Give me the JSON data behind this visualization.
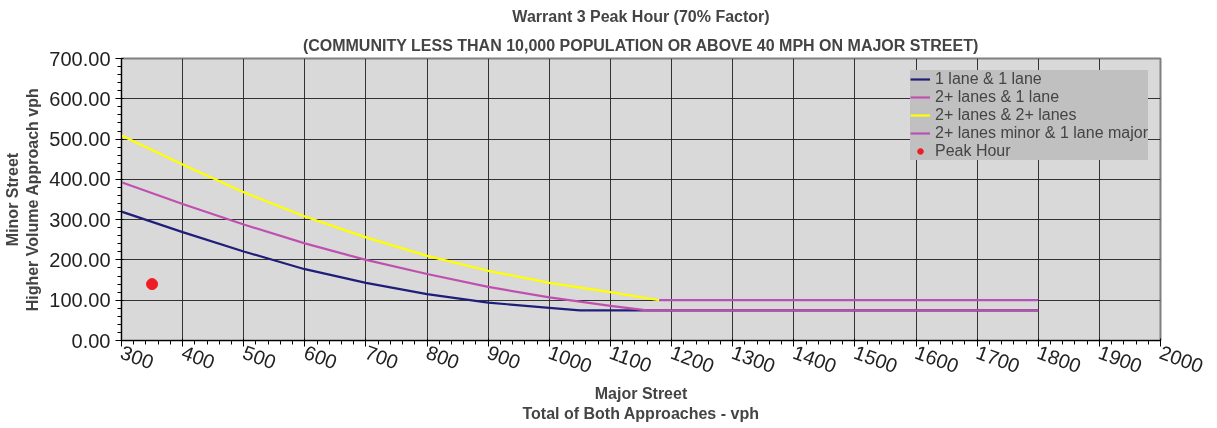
{
  "chart_data": {
    "type": "line",
    "title": "Warrant 3 Peak Hour (70% Factor)",
    "subtitle": "(COMMUNITY LESS THAN 10,000 POPULATION OR ABOVE 40 MPH ON MAJOR STREET)",
    "xlabel": "Major Street\nTotal of Both Approaches - vph",
    "ylabel": "Minor Street\nHigher Volume Approach vph",
    "series": [
      {
        "name": "1 lane & 1 lane",
        "color": "#1f1f7a",
        "x": [
          300,
          400,
          500,
          600,
          700,
          800,
          900,
          1000,
          1050,
          1800
        ],
        "values": [
          320,
          269,
          221,
          177,
          143,
          115,
          94,
          81,
          75,
          75
        ]
      },
      {
        "name": "2+ lanes & 1 lane",
        "color": "#c050b0",
        "x": [
          300,
          400,
          500,
          600,
          700,
          800,
          900,
          1000,
          1100,
          1160,
          1800
        ],
        "values": [
          393,
          339,
          288,
          241,
          200,
          165,
          133,
          107,
          86,
          75,
          75
        ]
      },
      {
        "name": "2+ lanes & 2+ lanes",
        "color": "#ffff00",
        "x": [
          300,
          400,
          500,
          600,
          700,
          800,
          900,
          1000,
          1100,
          1180
        ],
        "values": [
          509,
          437,
          368,
          308,
          256,
          210,
          173,
          143,
          120,
          100
        ]
      },
      {
        "name": "2+ lanes minor & 1 lane major",
        "color": "#b850b8",
        "x": [
          1180,
          1800
        ],
        "values": [
          100,
          100
        ]
      },
      {
        "name": "Peak Hour",
        "type": "scatter",
        "marker": "circle",
        "color": "#ee1c25",
        "x": [
          350
        ],
        "values": [
          140
        ]
      }
    ],
    "xlim": [
      300,
      2000
    ],
    "xticks": [
      300,
      400,
      500,
      600,
      700,
      800,
      900,
      1000,
      1100,
      1200,
      1300,
      1400,
      1500,
      1600,
      1700,
      1800,
      1900,
      2000
    ],
    "ylim": [
      0,
      700
    ],
    "yticks": [
      {
        "value": 0,
        "label": "0.00"
      },
      {
        "value": 100,
        "label": "100.00"
      },
      {
        "value": 200,
        "label": "200.00"
      },
      {
        "value": 300,
        "label": "300.00"
      },
      {
        "value": 400,
        "label": "400.00"
      },
      {
        "value": 500,
        "label": "500.00"
      },
      {
        "value": 600,
        "label": "600.00"
      },
      {
        "value": 700,
        "label": "700.00"
      }
    ],
    "grid": true,
    "legend": "top right",
    "line_style": "solid"
  }
}
